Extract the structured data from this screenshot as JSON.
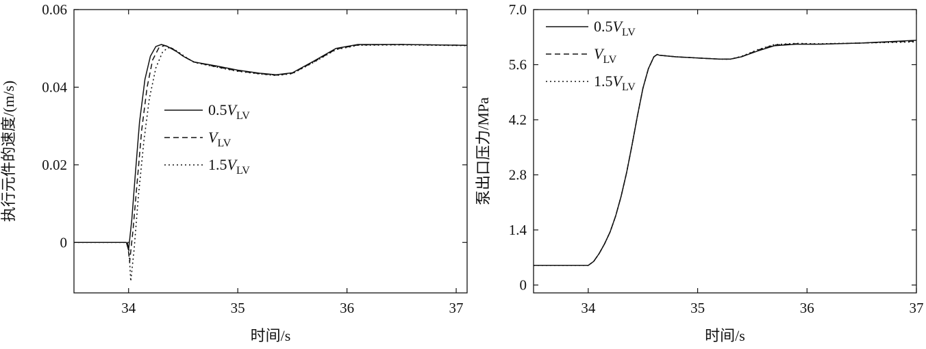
{
  "chart_data": [
    {
      "type": "line",
      "xlabel": "时间/s",
      "ylabel": "执行元件的速度/(m/s)",
      "xlim": [
        33.5,
        37.1
      ],
      "ylim": [
        -0.013,
        0.06
      ],
      "xticks": [
        "34",
        "35",
        "36",
        "37"
      ],
      "yticks": [
        "0",
        "0.02",
        "0.04",
        "0.06"
      ],
      "xtick_values": [
        34,
        35,
        36,
        37
      ],
      "ytick_values": [
        0,
        0.02,
        0.04,
        0.06
      ],
      "legend_position": "center-left",
      "series": [
        {
          "name": "0.5V_LV",
          "legend": {
            "prefix": "0.5",
            "var": "V",
            "sub": "LV"
          },
          "style": "solid",
          "x": [
            33.5,
            33.98,
            34.0,
            34.03,
            34.06,
            34.1,
            34.15,
            34.2,
            34.25,
            34.3,
            34.35,
            34.4,
            34.45,
            34.5,
            34.55,
            34.6,
            34.8,
            35.0,
            35.2,
            35.35,
            35.5,
            35.7,
            35.9,
            36.1,
            36.5,
            37.1
          ],
          "y": [
            0,
            0,
            -0.002,
            0.006,
            0.017,
            0.031,
            0.042,
            0.048,
            0.0505,
            0.051,
            0.0506,
            0.0498,
            0.049,
            0.048,
            0.0472,
            0.0465,
            0.0455,
            0.0444,
            0.0436,
            0.0432,
            0.0437,
            0.0468,
            0.05,
            0.051,
            0.051,
            0.0508
          ]
        },
        {
          "name": "V_LV",
          "legend": {
            "prefix": "",
            "var": "V",
            "sub": "LV"
          },
          "style": "dashed",
          "x": [
            33.5,
            33.99,
            34.01,
            34.04,
            34.08,
            34.12,
            34.17,
            34.22,
            34.28,
            34.33,
            34.38,
            34.43,
            34.5,
            34.6,
            34.8,
            35.0,
            35.2,
            35.35,
            35.5,
            35.7,
            35.9,
            36.1,
            36.5,
            37.1
          ],
          "y": [
            0,
            0,
            -0.005,
            0.003,
            0.016,
            0.029,
            0.04,
            0.047,
            0.0503,
            0.0507,
            0.0503,
            0.0494,
            0.048,
            0.0465,
            0.0453,
            0.0442,
            0.0435,
            0.0431,
            0.0436,
            0.0466,
            0.0498,
            0.0509,
            0.051,
            0.0508
          ]
        },
        {
          "name": "1.5V_LV",
          "legend": {
            "prefix": "1.5",
            "var": "V",
            "sub": "LV"
          },
          "style": "dotted",
          "x": [
            33.5,
            34.0,
            34.02,
            34.05,
            34.09,
            34.14,
            34.19,
            34.25,
            34.31,
            34.36,
            34.41,
            34.46,
            34.52,
            34.6,
            34.8,
            35.0,
            35.2,
            35.35,
            35.5,
            35.7,
            35.9,
            36.1,
            36.5,
            37.1
          ],
          "y": [
            0,
            0,
            -0.01,
            -0.002,
            0.012,
            0.026,
            0.037,
            0.045,
            0.049,
            0.0502,
            0.0499,
            0.049,
            0.0478,
            0.0464,
            0.0452,
            0.0441,
            0.0434,
            0.043,
            0.0435,
            0.0465,
            0.0497,
            0.0508,
            0.0509,
            0.0507
          ]
        }
      ]
    },
    {
      "type": "line",
      "xlabel": "时间/s",
      "ylabel": "泵出口压力/MPa",
      "xlim": [
        33.5,
        37.0
      ],
      "ylim": [
        -0.2,
        7.0
      ],
      "xticks": [
        "34",
        "35",
        "36",
        "37"
      ],
      "yticks": [
        "0",
        "1.4",
        "2.8",
        "4.2",
        "5.6",
        "7.0"
      ],
      "xtick_values": [
        34,
        35,
        36,
        37
      ],
      "ytick_values": [
        0,
        1.4,
        2.8,
        4.2,
        5.6,
        7.0
      ],
      "legend_position": "top-left",
      "series": [
        {
          "name": "0.5V_LV",
          "legend": {
            "prefix": "0.5",
            "var": "V",
            "sub": "LV"
          },
          "style": "solid",
          "x": [
            33.5,
            34.0,
            34.05,
            34.1,
            34.15,
            34.2,
            34.25,
            34.3,
            34.35,
            34.4,
            34.45,
            34.5,
            34.55,
            34.6,
            34.63,
            34.65,
            34.8,
            35.0,
            35.2,
            35.3,
            35.4,
            35.55,
            35.7,
            35.9,
            36.1,
            36.5,
            37.0
          ],
          "y": [
            0.5,
            0.5,
            0.6,
            0.8,
            1.05,
            1.35,
            1.75,
            2.25,
            2.85,
            3.55,
            4.3,
            5.0,
            5.5,
            5.8,
            5.86,
            5.84,
            5.8,
            5.77,
            5.74,
            5.74,
            5.8,
            5.95,
            6.08,
            6.12,
            6.12,
            6.15,
            6.22
          ]
        },
        {
          "name": "V_LV",
          "legend": {
            "prefix": "",
            "var": "V",
            "sub": "LV"
          },
          "style": "dashed",
          "x": [
            33.5,
            34.0,
            34.05,
            34.1,
            34.15,
            34.2,
            34.25,
            34.3,
            34.35,
            34.4,
            34.45,
            34.5,
            34.55,
            34.6,
            34.63,
            34.65,
            34.8,
            35.0,
            35.2,
            35.3,
            35.4,
            35.55,
            35.7,
            35.9,
            36.1,
            36.5,
            37.0
          ],
          "y": [
            0.5,
            0.5,
            0.6,
            0.8,
            1.05,
            1.35,
            1.75,
            2.25,
            2.85,
            3.55,
            4.3,
            5.0,
            5.5,
            5.8,
            5.86,
            5.84,
            5.8,
            5.77,
            5.74,
            5.74,
            5.8,
            5.97,
            6.1,
            6.13,
            6.12,
            6.15,
            6.2
          ]
        },
        {
          "name": "1.5V_LV",
          "legend": {
            "prefix": "1.5",
            "var": "V",
            "sub": "LV"
          },
          "style": "dotted",
          "x": [
            33.5,
            34.0,
            34.05,
            34.1,
            34.15,
            34.2,
            34.25,
            34.3,
            34.35,
            34.4,
            34.45,
            34.5,
            34.55,
            34.6,
            34.63,
            34.65,
            34.8,
            35.0,
            35.2,
            35.3,
            35.4,
            35.55,
            35.7,
            35.9,
            36.1,
            36.5,
            37.0
          ],
          "y": [
            0.5,
            0.5,
            0.6,
            0.8,
            1.05,
            1.35,
            1.75,
            2.25,
            2.85,
            3.55,
            4.3,
            5.0,
            5.5,
            5.8,
            5.86,
            5.84,
            5.8,
            5.77,
            5.74,
            5.74,
            5.81,
            5.98,
            6.11,
            6.14,
            6.13,
            6.15,
            6.18
          ]
        }
      ]
    }
  ]
}
